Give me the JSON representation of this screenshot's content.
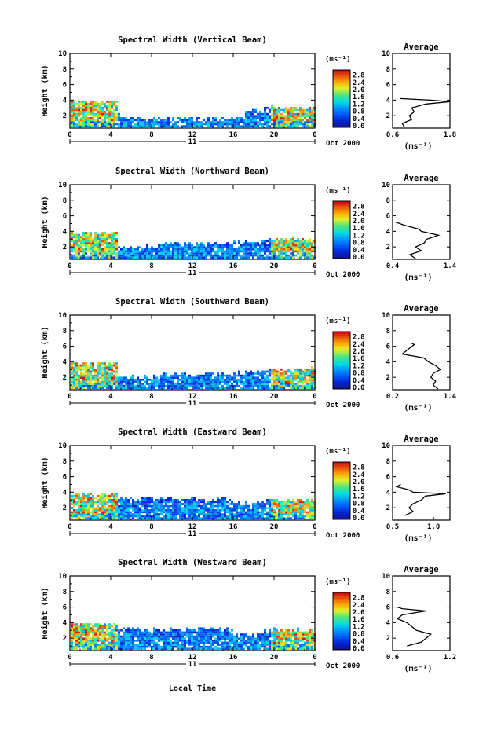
{
  "figure": {
    "colorbar_unit": "(ms⁻¹)",
    "colorbar_ticks": [
      "2.8",
      "2.4",
      "2.0",
      "1.6",
      "1.2",
      "0.8",
      "0.4",
      "0.0"
    ],
    "height_axis_label": "Height (km)",
    "height_ticks": [
      "10",
      "8",
      "6",
      "4",
      "2"
    ],
    "time_ticks": [
      "0",
      "4",
      "8",
      "12",
      "16",
      "20",
      "0"
    ],
    "date_day": "11",
    "date_month_year": "Oct 2000",
    "xlabel": "Local Time",
    "average_title": "Average",
    "average_unit": "(ms⁻¹)"
  },
  "chart_data": [
    {
      "type": "heatmap",
      "title": "Spectral Width (Vertical Beam)",
      "xlabel": "",
      "ylabel": "Height (km)",
      "xlim": [
        0,
        24
      ],
      "ylim": [
        0.4,
        10
      ],
      "clim": [
        0,
        3.0
      ],
      "average_profile": {
        "xlim": [
          0.6,
          1.8
        ],
        "xticks": [
          "0.6",
          "1.8"
        ],
        "height": [
          0.5,
          1.0,
          1.5,
          2.0,
          2.5,
          3.0,
          3.5,
          3.8,
          4.0,
          4.2
        ],
        "value": [
          0.85,
          0.8,
          1.0,
          0.95,
          1.05,
          1.0,
          1.3,
          1.8,
          1.4,
          0.75
        ]
      }
    },
    {
      "type": "heatmap",
      "title": "Spectral Width (Northward Beam)",
      "xlabel": "",
      "ylabel": "Height (km)",
      "xlim": [
        0,
        24
      ],
      "ylim": [
        0.4,
        10
      ],
      "clim": [
        0,
        3.0
      ],
      "average_profile": {
        "xlim": [
          0.4,
          1.4
        ],
        "xticks": [
          "0.4",
          "1.4"
        ],
        "height": [
          0.5,
          1.0,
          1.5,
          2.0,
          2.5,
          3.0,
          3.5,
          4.0,
          4.3,
          4.8,
          5.2
        ],
        "value": [
          0.8,
          0.7,
          0.9,
          0.8,
          0.95,
          1.0,
          1.2,
          0.9,
          0.85,
          0.6,
          0.45
        ]
      }
    },
    {
      "type": "heatmap",
      "title": "Spectral Width (Southward Beam)",
      "xlabel": "",
      "ylabel": "Height (km)",
      "xlim": [
        0,
        24
      ],
      "ylim": [
        0.4,
        10
      ],
      "clim": [
        0,
        3.0
      ],
      "average_profile": {
        "xlim": [
          0.2,
          1.4
        ],
        "xticks": [
          "0.2",
          "1.4"
        ],
        "height": [
          0.5,
          1.0,
          1.5,
          2.0,
          2.5,
          3.0,
          3.5,
          4.0,
          4.5,
          5.0,
          6.2,
          6.4
        ],
        "value": [
          1.15,
          1.05,
          1.1,
          1.0,
          1.05,
          1.2,
          1.1,
          0.95,
          0.85,
          0.4,
          0.65,
          0.6
        ]
      }
    },
    {
      "type": "heatmap",
      "title": "Spectral Width (Eastward Beam)",
      "xlabel": "",
      "ylabel": "Height (km)",
      "xlim": [
        0,
        24
      ],
      "ylim": [
        0.4,
        10
      ],
      "clim": [
        0,
        3.0
      ],
      "average_profile": {
        "xlim": [
          0.5,
          1.2
        ],
        "xticks": [
          "0.5",
          "1.0"
        ],
        "height": [
          1.0,
          1.5,
          2.0,
          2.5,
          3.0,
          3.5,
          3.8,
          4.0,
          4.3,
          4.7,
          5.0
        ],
        "value": [
          0.65,
          0.75,
          0.7,
          0.75,
          0.85,
          0.9,
          1.15,
          0.75,
          0.7,
          0.55,
          0.6
        ]
      }
    },
    {
      "type": "heatmap",
      "title": "Spectral Width (Westward Beam)",
      "xlabel": "",
      "ylabel": "Height (km)",
      "xlim": [
        0,
        24
      ],
      "ylim": [
        0.4,
        10
      ],
      "clim": [
        0,
        3.0
      ],
      "average_profile": {
        "xlim": [
          0.6,
          1.2
        ],
        "xticks": [
          "0.6",
          "1.2"
        ],
        "height": [
          1.0,
          1.5,
          2.0,
          2.5,
          3.0,
          3.5,
          4.0,
          4.5,
          5.0,
          5.5,
          5.8,
          6.0
        ],
        "value": [
          0.75,
          0.9,
          0.95,
          1.0,
          0.85,
          0.8,
          0.75,
          0.65,
          0.7,
          0.95,
          0.7,
          0.65
        ]
      }
    }
  ]
}
